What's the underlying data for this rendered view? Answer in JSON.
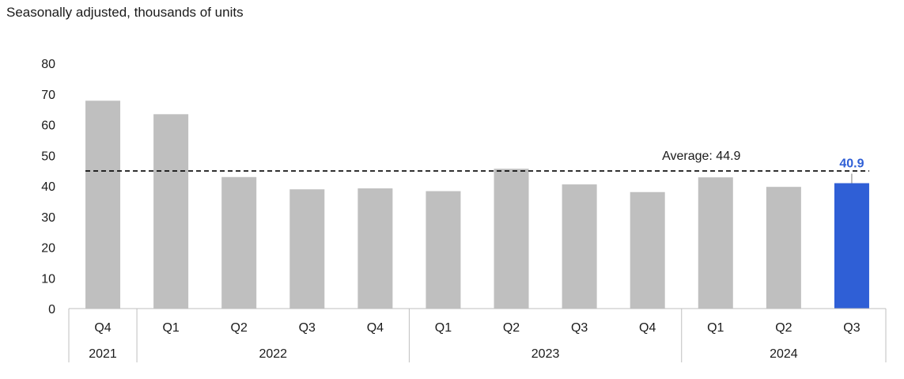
{
  "chart_data": {
    "type": "bar",
    "title": "",
    "subtitle": "Seasonally adjusted, thousands of units",
    "xlabel": "",
    "ylabel": "",
    "ylim": [
      0,
      80
    ],
    "yticks": [
      0,
      10,
      20,
      30,
      40,
      50,
      60,
      70,
      80
    ],
    "categories": [
      "Q4",
      "Q1",
      "Q2",
      "Q3",
      "Q4",
      "Q1",
      "Q2",
      "Q3",
      "Q4",
      "Q1",
      "Q2",
      "Q3"
    ],
    "years": [
      {
        "label": "2021",
        "count": 1
      },
      {
        "label": "2022",
        "count": 4
      },
      {
        "label": "2023",
        "count": 4
      },
      {
        "label": "2024",
        "count": 3
      }
    ],
    "values": [
      67.8,
      63.4,
      42.9,
      38.9,
      39.2,
      38.3,
      45.6,
      40.5,
      38.0,
      42.8,
      39.7,
      40.9
    ],
    "average": {
      "value": 44.9,
      "label": "Average: 44.9"
    },
    "highlight": {
      "index": 11,
      "label": "40.9"
    },
    "colors": {
      "bar": "#bfbfbf",
      "highlight": "#2f5fd6",
      "axis": "#bfbfbf",
      "text": "#1a1a1a"
    },
    "grid": false,
    "legend": "none"
  }
}
